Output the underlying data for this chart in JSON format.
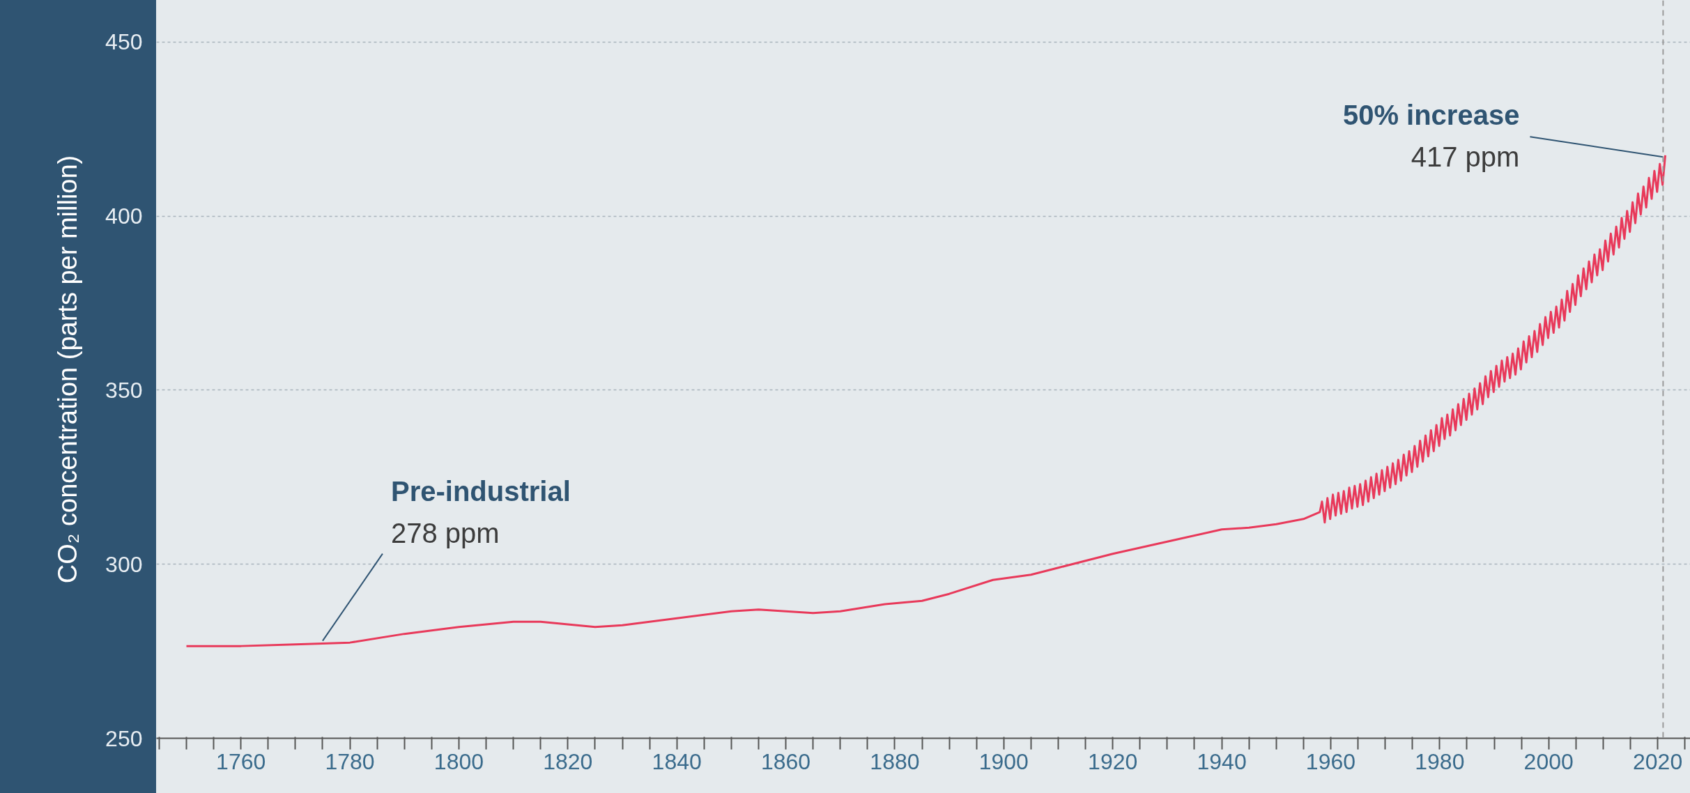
{
  "chart_data": {
    "type": "line",
    "ylabel": "CO₂ concentration (parts per million)",
    "xlim": [
      1744.5,
      2026
    ],
    "ylim": [
      250,
      462
    ],
    "xticks": [
      1760,
      1780,
      1800,
      1820,
      1840,
      1860,
      1880,
      1900,
      1920,
      1940,
      1960,
      1980,
      2000,
      2020
    ],
    "yticks": [
      250,
      300,
      350,
      400,
      450
    ],
    "grid": "y",
    "marker": "none",
    "line_style": "solid",
    "series": [
      {
        "color": "#e8395a",
        "x": [
          1750,
          1760,
          1770,
          1780,
          1790,
          1800,
          1810,
          1815,
          1825,
          1830,
          1840,
          1850,
          1855,
          1865,
          1870,
          1878,
          1885,
          1890,
          1898,
          1905,
          1910,
          1920,
          1930,
          1940,
          1945,
          1950,
          1955,
          1958,
          1958.4,
          1958.9,
          1959.4,
          1959.9,
          1960.4,
          1960.9,
          1961.4,
          1961.9,
          1962.4,
          1962.9,
          1963.4,
          1963.9,
          1964.4,
          1964.9,
          1965.4,
          1965.9,
          1966.4,
          1966.9,
          1967.4,
          1967.9,
          1968.4,
          1968.9,
          1969.4,
          1969.9,
          1970.4,
          1970.9,
          1971.4,
          1971.9,
          1972.4,
          1972.9,
          1973.4,
          1973.9,
          1974.4,
          1974.9,
          1975.4,
          1975.9,
          1976.4,
          1976.9,
          1977.4,
          1977.9,
          1978.4,
          1978.9,
          1979.4,
          1979.9,
          1980.4,
          1980.9,
          1981.4,
          1981.9,
          1982.4,
          1982.9,
          1983.4,
          1983.9,
          1984.4,
          1984.9,
          1985.4,
          1985.9,
          1986.4,
          1986.9,
          1987.4,
          1987.9,
          1988.4,
          1988.9,
          1989.4,
          1989.9,
          1990.4,
          1990.9,
          1991.4,
          1991.9,
          1992.4,
          1992.9,
          1993.4,
          1993.9,
          1994.4,
          1994.9,
          1995.4,
          1995.9,
          1996.4,
          1996.9,
          1997.4,
          1997.9,
          1998.4,
          1998.9,
          1999.4,
          1999.9,
          2000.4,
          2000.9,
          2001.4,
          2001.9,
          2002.4,
          2002.9,
          2003.4,
          2003.9,
          2004.4,
          2004.9,
          2005.4,
          2005.9,
          2006.4,
          2006.9,
          2007.4,
          2007.9,
          2008.4,
          2008.9,
          2009.4,
          2009.9,
          2010.4,
          2010.9,
          2011.4,
          2011.9,
          2012.4,
          2012.9,
          2013.4,
          2013.9,
          2014.4,
          2014.9,
          2015.4,
          2015.9,
          2016.4,
          2016.9,
          2017.4,
          2017.9,
          2018.4,
          2018.9,
          2019.4,
          2019.9,
          2020.4,
          2020.9,
          2021.4
        ],
        "values": [
          276.5,
          276.5,
          277,
          277.5,
          280,
          282,
          283.5,
          283.5,
          282,
          282.5,
          284.5,
          286.5,
          287,
          286,
          286.5,
          288.5,
          289.5,
          291.5,
          295.5,
          297,
          299,
          303,
          306.5,
          310,
          310.5,
          311.5,
          313,
          315,
          318,
          312,
          319,
          313,
          320,
          314,
          320.5,
          314.5,
          321,
          315,
          322,
          316,
          322.5,
          316.5,
          323,
          317,
          324,
          318,
          325,
          319,
          326,
          320,
          327,
          321,
          328,
          322,
          329,
          323,
          330,
          324,
          331.5,
          325.5,
          332.5,
          326.5,
          334,
          328,
          335.5,
          329.5,
          337,
          331,
          338.5,
          332.5,
          340,
          334,
          342,
          336,
          343,
          337,
          344.5,
          338.5,
          346,
          340,
          347.5,
          341.5,
          349,
          343,
          350.5,
          344.5,
          352,
          346,
          354,
          348,
          355.5,
          349.5,
          357,
          351,
          358.5,
          352.5,
          359.5,
          353.5,
          360.5,
          354.5,
          362,
          356,
          364,
          358,
          365.5,
          359.5,
          367,
          361,
          369,
          363,
          371,
          365,
          372.5,
          366.5,
          374,
          368,
          376,
          370,
          378.5,
          372.5,
          380.5,
          374.5,
          383,
          377,
          385,
          379,
          387,
          381,
          389,
          383,
          390.5,
          384.5,
          393,
          387,
          395,
          389,
          397,
          391,
          399.5,
          393.5,
          401.5,
          395.5,
          404,
          398,
          406.5,
          400.5,
          408.5,
          402.5,
          411,
          405,
          413,
          407,
          415,
          409,
          417.5
        ]
      }
    ],
    "ref_lines": [
      {
        "axis": "x",
        "value": 2021,
        "color": "#9a9a9a",
        "line_style": "dashed"
      }
    ],
    "annotations": [
      {
        "text": "Pre-industrial\n278 ppm",
        "x": 1775,
        "y": 278
      },
      {
        "text": "50% increase\n417 ppm",
        "x": 2021,
        "y": 417
      }
    ]
  }
}
